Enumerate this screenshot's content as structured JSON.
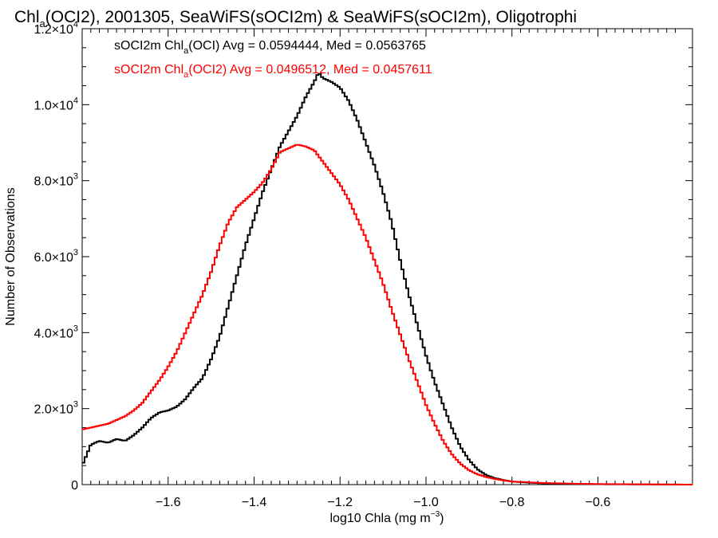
{
  "chart_data": {
    "type": "histogram",
    "title": {
      "parts": [
        "Chl",
        "a",
        "(OCI2), 2001305, SeaWiFS(sOCI2m) & SeaWiFS(sOCI2m), Oligotrophi"
      ]
    },
    "xlabel": {
      "parts": [
        "log10 Chla (mg m",
        "−3",
        ")"
      ]
    },
    "ylabel": "Number of Observations",
    "xlim": [
      -1.8,
      -0.38
    ],
    "ylim": [
      0,
      12000
    ],
    "x_ticks": [
      {
        "value": -1.6,
        "label": "−1.6"
      },
      {
        "value": -1.4,
        "label": "−1.4"
      },
      {
        "value": -1.2,
        "label": "−1.2"
      },
      {
        "value": -1.0,
        "label": "−1.0"
      },
      {
        "value": -0.8,
        "label": "−0.8"
      },
      {
        "value": -0.6,
        "label": "−0.6"
      }
    ],
    "y_ticks": [
      {
        "value": 0,
        "base": "0",
        "exp": ""
      },
      {
        "value": 2000,
        "base": "2.0×10",
        "exp": "3"
      },
      {
        "value": 4000,
        "base": "4.0×10",
        "exp": "3"
      },
      {
        "value": 6000,
        "base": "6.0×10",
        "exp": "3"
      },
      {
        "value": 8000,
        "base": "8.0×10",
        "exp": "3"
      },
      {
        "value": 10000,
        "base": "1.0×10",
        "exp": "4"
      },
      {
        "value": 12000,
        "base": "1.2×10",
        "exp": "4"
      }
    ],
    "grid": false,
    "series": [
      {
        "color": "#000000",
        "legend": {
          "prefix": "sOCI2m Chl",
          "sub": "a",
          "suffix": "(OCI) Avg = 0.0594444, Med = 0.0563765"
        },
        "points": [
          [
            -1.8,
            500
          ],
          [
            -1.78,
            1050
          ],
          [
            -1.76,
            1150
          ],
          [
            -1.74,
            1100
          ],
          [
            -1.72,
            1200
          ],
          [
            -1.7,
            1150
          ],
          [
            -1.68,
            1300
          ],
          [
            -1.66,
            1500
          ],
          [
            -1.64,
            1750
          ],
          [
            -1.62,
            1900
          ],
          [
            -1.6,
            1950
          ],
          [
            -1.58,
            2050
          ],
          [
            -1.56,
            2250
          ],
          [
            -1.54,
            2550
          ],
          [
            -1.52,
            2800
          ],
          [
            -1.5,
            3300
          ],
          [
            -1.48,
            3900
          ],
          [
            -1.46,
            4700
          ],
          [
            -1.44,
            5500
          ],
          [
            -1.42,
            6300
          ],
          [
            -1.4,
            7000
          ],
          [
            -1.38,
            7700
          ],
          [
            -1.36,
            8300
          ],
          [
            -1.34,
            8900
          ],
          [
            -1.32,
            9300
          ],
          [
            -1.3,
            9700
          ],
          [
            -1.28,
            10200
          ],
          [
            -1.26,
            10600
          ],
          [
            -1.25,
            10850
          ],
          [
            -1.24,
            10700
          ],
          [
            -1.22,
            10600
          ],
          [
            -1.2,
            10450
          ],
          [
            -1.18,
            10100
          ],
          [
            -1.16,
            9600
          ],
          [
            -1.14,
            9000
          ],
          [
            -1.12,
            8400
          ],
          [
            -1.1,
            7700
          ],
          [
            -1.08,
            6900
          ],
          [
            -1.06,
            5900
          ],
          [
            -1.04,
            5000
          ],
          [
            -1.02,
            4200
          ],
          [
            -1.0,
            3400
          ],
          [
            -0.98,
            2700
          ],
          [
            -0.96,
            2100
          ],
          [
            -0.94,
            1500
          ],
          [
            -0.92,
            1000
          ],
          [
            -0.9,
            650
          ],
          [
            -0.88,
            400
          ],
          [
            -0.86,
            250
          ],
          [
            -0.84,
            170
          ],
          [
            -0.82,
            120
          ],
          [
            -0.8,
            80
          ],
          [
            -0.76,
            50
          ],
          [
            -0.72,
            30
          ],
          [
            -0.66,
            20
          ],
          [
            -0.6,
            10
          ],
          [
            -0.5,
            5
          ],
          [
            -0.38,
            0
          ]
        ]
      },
      {
        "color": "#ff0000",
        "legend": {
          "prefix": "sOCI2m Chl",
          "sub": "a",
          "suffix": "(OCI2) Avg = 0.0496512, Med = 0.0457611"
        },
        "points": [
          [
            -1.8,
            1450
          ],
          [
            -1.78,
            1500
          ],
          [
            -1.76,
            1550
          ],
          [
            -1.74,
            1600
          ],
          [
            -1.72,
            1700
          ],
          [
            -1.7,
            1800
          ],
          [
            -1.68,
            1950
          ],
          [
            -1.66,
            2150
          ],
          [
            -1.64,
            2450
          ],
          [
            -1.62,
            2750
          ],
          [
            -1.6,
            3100
          ],
          [
            -1.58,
            3500
          ],
          [
            -1.56,
            4000
          ],
          [
            -1.54,
            4500
          ],
          [
            -1.52,
            5000
          ],
          [
            -1.5,
            5600
          ],
          [
            -1.48,
            6300
          ],
          [
            -1.46,
            6900
          ],
          [
            -1.44,
            7300
          ],
          [
            -1.42,
            7500
          ],
          [
            -1.4,
            7700
          ],
          [
            -1.38,
            7950
          ],
          [
            -1.36,
            8300
          ],
          [
            -1.34,
            8750
          ],
          [
            -1.32,
            8850
          ],
          [
            -1.3,
            8950
          ],
          [
            -1.28,
            8900
          ],
          [
            -1.26,
            8800
          ],
          [
            -1.24,
            8500
          ],
          [
            -1.22,
            8200
          ],
          [
            -1.2,
            7900
          ],
          [
            -1.18,
            7500
          ],
          [
            -1.16,
            7000
          ],
          [
            -1.14,
            6500
          ],
          [
            -1.12,
            5900
          ],
          [
            -1.1,
            5300
          ],
          [
            -1.08,
            4600
          ],
          [
            -1.06,
            3950
          ],
          [
            -1.04,
            3300
          ],
          [
            -1.02,
            2700
          ],
          [
            -1.0,
            2100
          ],
          [
            -0.98,
            1600
          ],
          [
            -0.96,
            1150
          ],
          [
            -0.94,
            800
          ],
          [
            -0.92,
            550
          ],
          [
            -0.9,
            380
          ],
          [
            -0.88,
            270
          ],
          [
            -0.86,
            200
          ],
          [
            -0.84,
            150
          ],
          [
            -0.82,
            110
          ],
          [
            -0.8,
            80
          ],
          [
            -0.76,
            60
          ],
          [
            -0.72,
            40
          ],
          [
            -0.66,
            25
          ],
          [
            -0.6,
            15
          ],
          [
            -0.5,
            8
          ],
          [
            -0.38,
            0
          ]
        ]
      }
    ]
  }
}
